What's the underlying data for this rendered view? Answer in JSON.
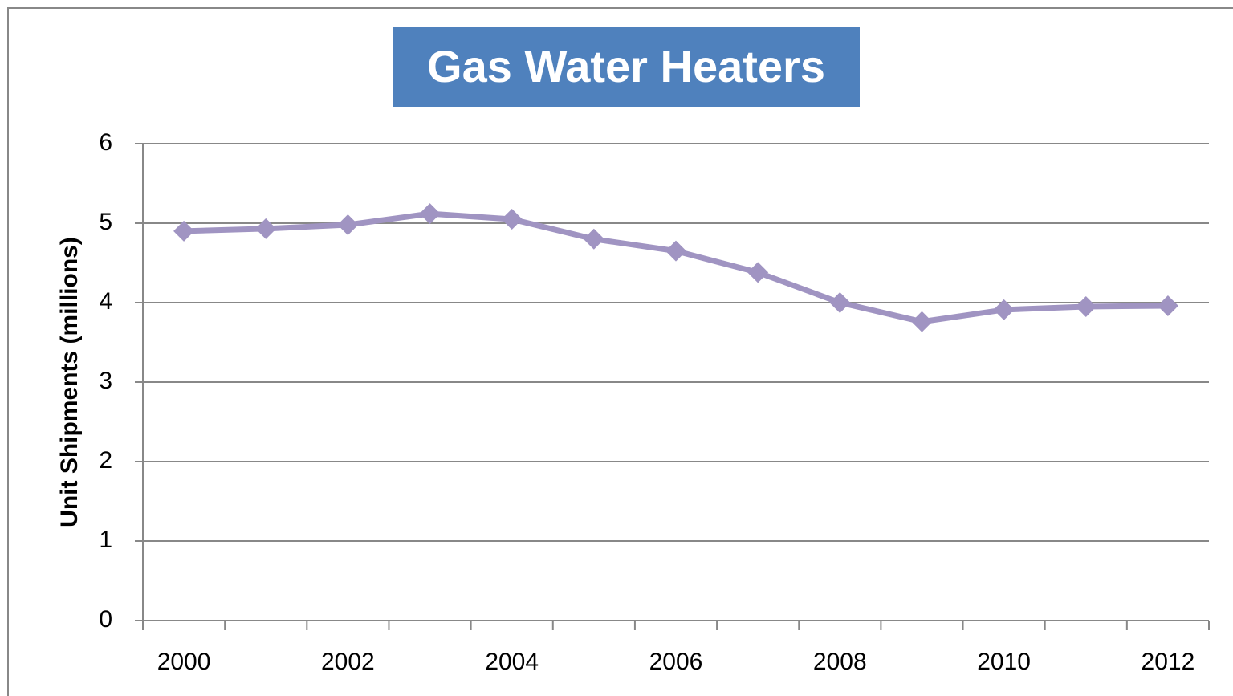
{
  "chart_data": {
    "type": "line",
    "title": "Gas Water Heaters",
    "y_label": "Unit Shipments (millions)",
    "categories": [
      "2000",
      null,
      "2002",
      null,
      "2004",
      null,
      "2006",
      null,
      "2008",
      null,
      "2010",
      null,
      "2012"
    ],
    "values": [
      4.9,
      4.93,
      4.98,
      5.12,
      5.05,
      4.8,
      4.65,
      4.38,
      4.0,
      3.76,
      3.91,
      3.95,
      3.96
    ],
    "color": "#a094c2",
    "ylim": [
      0,
      6
    ],
    "yticks": [
      0,
      1,
      2,
      3,
      4,
      5,
      6
    ],
    "grid": true
  }
}
